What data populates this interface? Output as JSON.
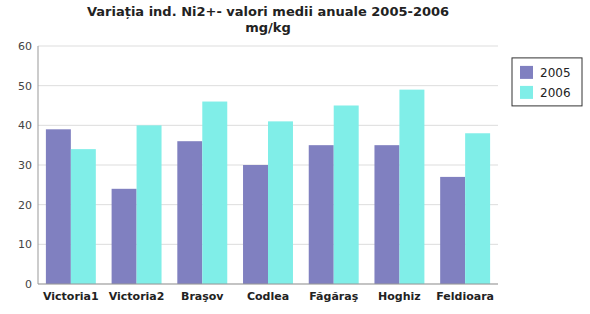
{
  "chart_data": {
    "type": "bar",
    "title": "Variația ind. Ni2+- valori medii anuale 2005-2006",
    "subtitle": "mg/kg",
    "categories": [
      "Victoria1",
      "Victoria2",
      "Braşov",
      "Codlea",
      "Făgăraş",
      "Hoghiz",
      "Feldioara"
    ],
    "series": [
      {
        "name": "2005",
        "color": "#8080c0",
        "values": [
          39,
          24,
          36,
          30,
          35,
          35,
          27
        ]
      },
      {
        "name": "2006",
        "color": "#80eee8",
        "values": [
          34,
          40,
          46,
          41,
          45,
          49,
          38
        ]
      }
    ],
    "ylim": [
      0,
      60
    ],
    "yticks": [
      0,
      10,
      20,
      30,
      40,
      50,
      60
    ],
    "grid": true,
    "legend": "right"
  }
}
